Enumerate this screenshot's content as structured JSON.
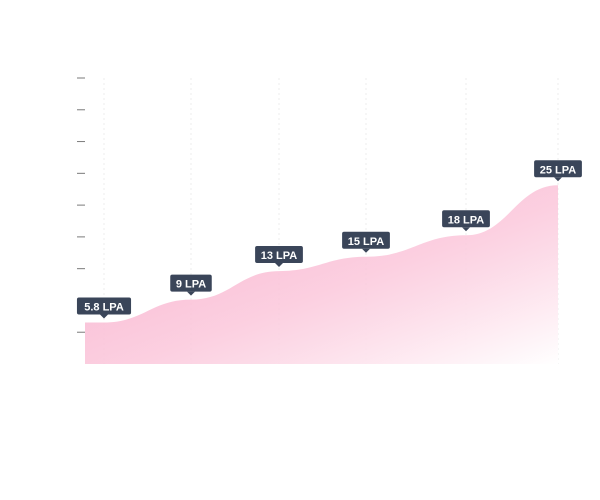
{
  "chart_data": {
    "type": "area",
    "points": [
      {
        "x": 1,
        "y": 5.8,
        "label": "5.8 LPA"
      },
      {
        "x": 2,
        "y": 9,
        "label": "9 LPA"
      },
      {
        "x": 3,
        "y": 13,
        "label": "13 LPA"
      },
      {
        "x": 4,
        "y": 15,
        "label": "15 LPA"
      },
      {
        "x": 5,
        "y": 18,
        "label": "18 LPA"
      },
      {
        "x": 6,
        "y": 25,
        "label": "25 LPA"
      }
    ],
    "ylim": [
      0,
      40
    ],
    "y_tick_count": 9,
    "grid": true,
    "area_color_top": "#f7a9c8",
    "area_color_bottom": "#ffffff",
    "label_bg_color": "#3a4559",
    "label_text_color": "#ffffff"
  }
}
